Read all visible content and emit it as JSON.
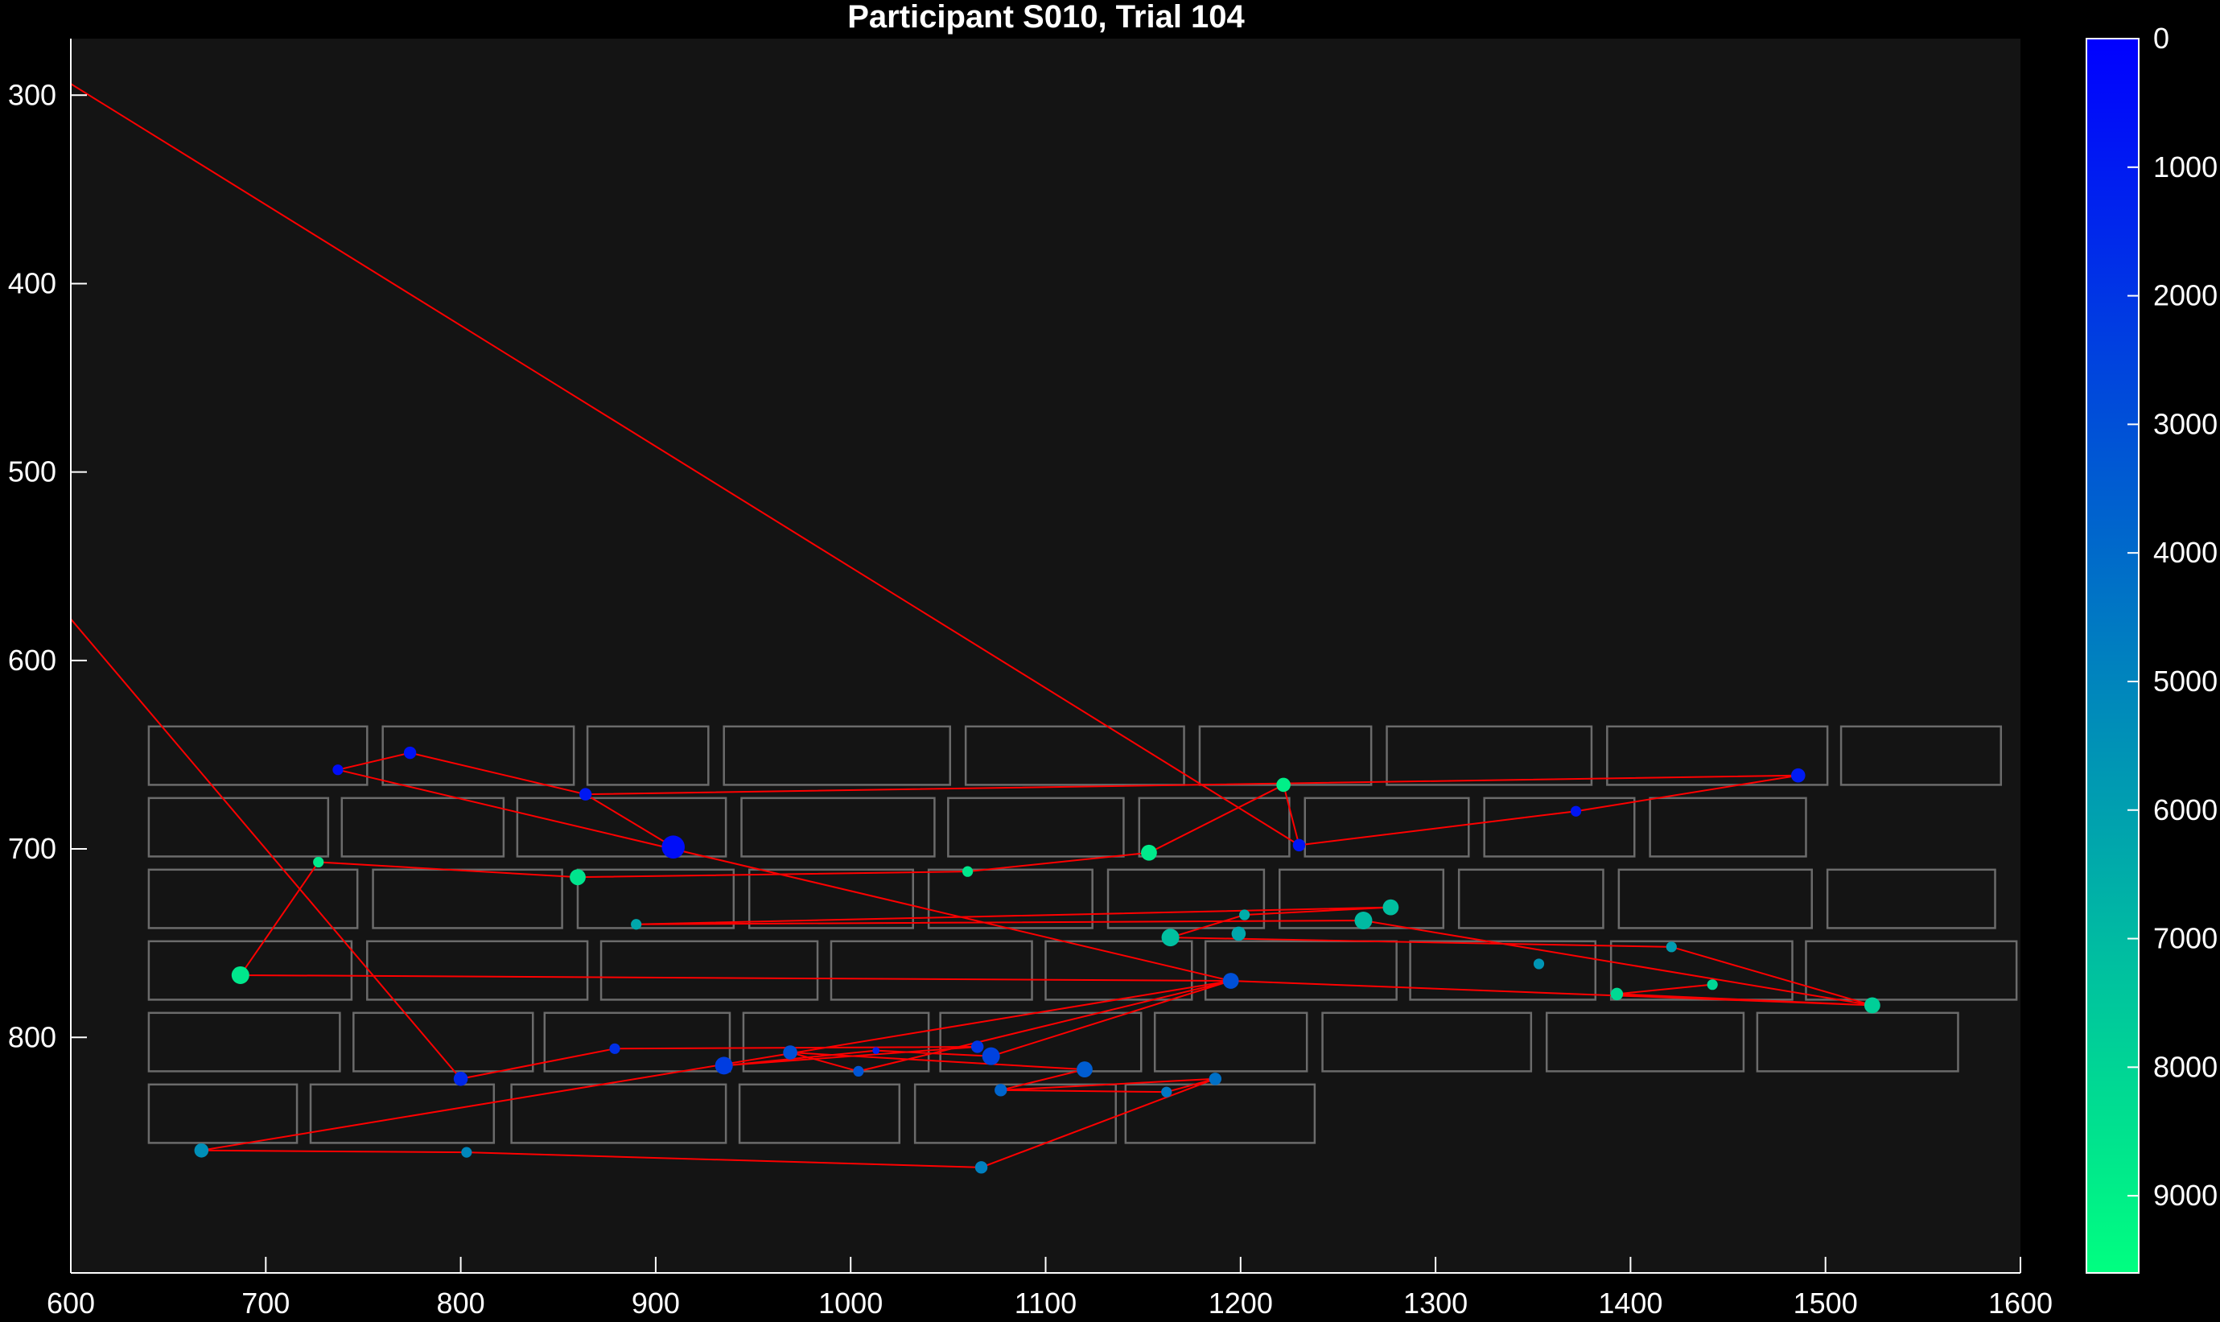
{
  "colors": {
    "figure_bg": "#000000",
    "axes_bg": "#141414",
    "axis_line": "#ffffff",
    "text": "#ffffff",
    "word_box": "#6b6b6b",
    "scanpath": "#ff0000",
    "colormap_start": "#0000ff",
    "colormap_end": "#00ff80"
  },
  "chart_data": {
    "type": "scatter",
    "title": "Participant S010, Trial 104",
    "xlabel": "",
    "ylabel": "",
    "xlim": [
      600,
      1600
    ],
    "ylim": [
      925,
      270
    ],
    "y_axis_reversed": true,
    "xticks": [
      600,
      700,
      800,
      900,
      1000,
      1100,
      1200,
      1300,
      1400,
      1500,
      1600
    ],
    "yticks": [
      300,
      400,
      500,
      600,
      700,
      800
    ],
    "grid": false,
    "legend": "none",
    "colorbar": {
      "label": "",
      "range": [
        0,
        9600
      ],
      "ticks": [
        0,
        1000,
        2000,
        3000,
        4000,
        5000,
        6000,
        7000,
        8000,
        9000
      ],
      "reversed": true
    },
    "word_boxes": [
      [
        640,
        635,
        752,
        666
      ],
      [
        760,
        635,
        858,
        666
      ],
      [
        865,
        635,
        927,
        666
      ],
      [
        935,
        635,
        1051,
        666
      ],
      [
        1059,
        635,
        1171,
        666
      ],
      [
        1179,
        635,
        1267,
        666
      ],
      [
        1275,
        635,
        1380,
        666
      ],
      [
        1388,
        635,
        1501,
        666
      ],
      [
        1508,
        635,
        1590,
        666
      ],
      [
        640,
        673,
        732,
        704
      ],
      [
        739,
        673,
        822,
        704
      ],
      [
        829,
        673,
        936,
        704
      ],
      [
        944,
        673,
        1043,
        704
      ],
      [
        1050,
        673,
        1140,
        704
      ],
      [
        1148,
        673,
        1225,
        704
      ],
      [
        1233,
        673,
        1317,
        704
      ],
      [
        1325,
        673,
        1402,
        704
      ],
      [
        1410,
        673,
        1490,
        704
      ],
      [
        640,
        711,
        747,
        742
      ],
      [
        755,
        711,
        852,
        742
      ],
      [
        860,
        711,
        940,
        742
      ],
      [
        948,
        711,
        1032,
        742
      ],
      [
        1040,
        711,
        1124,
        742
      ],
      [
        1132,
        711,
        1212,
        742
      ],
      [
        1220,
        711,
        1304,
        742
      ],
      [
        1312,
        711,
        1386,
        742
      ],
      [
        1394,
        711,
        1493,
        742
      ],
      [
        1501,
        711,
        1587,
        742
      ],
      [
        640,
        749,
        744,
        780
      ],
      [
        752,
        749,
        865,
        780
      ],
      [
        872,
        749,
        983,
        780
      ],
      [
        990,
        749,
        1093,
        780
      ],
      [
        1100,
        749,
        1175,
        780
      ],
      [
        1182,
        749,
        1280,
        780
      ],
      [
        1287,
        749,
        1382,
        780
      ],
      [
        1390,
        749,
        1483,
        780
      ],
      [
        1490,
        749,
        1598,
        780
      ],
      [
        640,
        787,
        738,
        818
      ],
      [
        745,
        787,
        837,
        818
      ],
      [
        843,
        787,
        938,
        818
      ],
      [
        945,
        787,
        1040,
        818
      ],
      [
        1046,
        787,
        1149,
        818
      ],
      [
        1156,
        787,
        1234,
        818
      ],
      [
        1242,
        787,
        1349,
        818
      ],
      [
        1357,
        787,
        1458,
        818
      ],
      [
        1465,
        787,
        1568,
        818
      ],
      [
        640,
        825,
        716,
        856
      ],
      [
        723,
        825,
        817,
        856
      ],
      [
        826,
        825,
        936,
        856
      ],
      [
        943,
        825,
        1025,
        856
      ],
      [
        1033,
        825,
        1136,
        856
      ],
      [
        1141,
        825,
        1238,
        856
      ]
    ],
    "scanpath_lines": [
      {
        "start": [
          600,
          578
        ],
        "end": [
          800,
          822
        ]
      },
      {
        "start": [
          600,
          294
        ],
        "end": [
          1230,
          698
        ]
      }
    ],
    "fixations": [
      {
        "x": 800,
        "y": 822,
        "t": 1500,
        "size": 8
      },
      {
        "x": 879,
        "y": 806,
        "t": 1800,
        "size": 6
      },
      {
        "x": 1065,
        "y": 805,
        "t": 2000,
        "size": 7
      },
      {
        "x": 1072,
        "y": 810,
        "t": 2500,
        "size": 10
      },
      {
        "x": 1013,
        "y": 807,
        "t": 1200,
        "size": 4
      },
      {
        "x": 935,
        "y": 815,
        "t": 2300,
        "size": 10
      },
      {
        "x": 1120,
        "y": 817,
        "t": 3500,
        "size": 9
      },
      {
        "x": 1004,
        "y": 818,
        "t": 3200,
        "size": 6
      },
      {
        "x": 969,
        "y": 808,
        "t": 3000,
        "size": 8
      },
      {
        "x": 1077,
        "y": 828,
        "t": 3800,
        "size": 7
      },
      {
        "x": 1187,
        "y": 822,
        "t": 4200,
        "size": 7
      },
      {
        "x": 1162,
        "y": 829,
        "t": 4500,
        "size": 6
      },
      {
        "x": 1067,
        "y": 869,
        "t": 4800,
        "size": 7
      },
      {
        "x": 803,
        "y": 861,
        "t": 5100,
        "size": 6
      },
      {
        "x": 667,
        "y": 860,
        "t": 5400,
        "size": 8
      },
      {
        "x": 1195,
        "y": 770,
        "t": 3000,
        "size": 9
      },
      {
        "x": 737,
        "y": 658,
        "t": 500,
        "size": 6
      },
      {
        "x": 774,
        "y": 649,
        "t": 700,
        "size": 7
      },
      {
        "x": 864,
        "y": 671,
        "t": 900,
        "size": 7
      },
      {
        "x": 909,
        "y": 699,
        "t": 500,
        "size": 13
      },
      {
        "x": 1230,
        "y": 698,
        "t": 800,
        "size": 7
      },
      {
        "x": 1486,
        "y": 661,
        "t": 1000,
        "size": 8
      },
      {
        "x": 1372,
        "y": 680,
        "t": 800,
        "size": 6
      },
      {
        "x": 1222,
        "y": 666,
        "t": 9000,
        "size": 8
      },
      {
        "x": 1153,
        "y": 702,
        "t": 8800,
        "size": 9
      },
      {
        "x": 1060,
        "y": 712,
        "t": 8700,
        "size": 6
      },
      {
        "x": 860,
        "y": 715,
        "t": 8600,
        "size": 9
      },
      {
        "x": 727,
        "y": 707,
        "t": 8800,
        "size": 6
      },
      {
        "x": 687,
        "y": 767,
        "t": 8700,
        "size": 10
      },
      {
        "x": 890,
        "y": 740,
        "t": 6300,
        "size": 6
      },
      {
        "x": 1277,
        "y": 731,
        "t": 7200,
        "size": 9
      },
      {
        "x": 1263,
        "y": 738,
        "t": 7000,
        "size": 10
      },
      {
        "x": 1164,
        "y": 747,
        "t": 7200,
        "size": 10
      },
      {
        "x": 1202,
        "y": 735,
        "t": 6500,
        "size": 6
      },
      {
        "x": 1199,
        "y": 745,
        "t": 6300,
        "size": 8
      },
      {
        "x": 1524,
        "y": 783,
        "t": 7800,
        "size": 9
      },
      {
        "x": 1421,
        "y": 752,
        "t": 5900,
        "size": 6
      },
      {
        "x": 1353,
        "y": 761,
        "t": 5600,
        "size": 6
      },
      {
        "x": 1393,
        "y": 777,
        "t": 8200,
        "size": 7
      },
      {
        "x": 1442,
        "y": 772,
        "t": 8000,
        "size": 6
      }
    ],
    "scanpath_order": [
      [
        800,
        822
      ],
      [
        879,
        806
      ],
      [
        1065,
        805
      ],
      [
        935,
        815
      ],
      [
        1013,
        807
      ],
      [
        1072,
        810
      ],
      [
        1195,
        770
      ],
      [
        1004,
        818
      ],
      [
        969,
        808
      ],
      [
        1120,
        817
      ],
      [
        1077,
        828
      ],
      [
        1187,
        822
      ],
      [
        1077,
        828
      ],
      [
        1162,
        829
      ],
      [
        1187,
        822
      ],
      [
        1067,
        869
      ],
      [
        803,
        861
      ],
      [
        667,
        860
      ],
      [
        1195,
        770
      ],
      [
        737,
        658
      ],
      [
        774,
        649
      ],
      [
        864,
        671
      ],
      [
        909,
        699
      ],
      [
        864,
        671
      ],
      [
        1486,
        661
      ],
      [
        1372,
        680
      ],
      [
        1230,
        698
      ],
      [
        1222,
        666
      ],
      [
        1153,
        702
      ],
      [
        1060,
        712
      ],
      [
        860,
        715
      ],
      [
        727,
        707
      ],
      [
        687,
        767
      ],
      [
        1195,
        770
      ],
      [
        1524,
        783
      ],
      [
        1421,
        752
      ],
      [
        1164,
        747
      ],
      [
        1202,
        735
      ],
      [
        1277,
        731
      ],
      [
        890,
        740
      ],
      [
        1263,
        738
      ],
      [
        1524,
        783
      ],
      [
        1393,
        777
      ],
      [
        1442,
        772
      ],
      [
        1393,
        777
      ]
    ]
  }
}
